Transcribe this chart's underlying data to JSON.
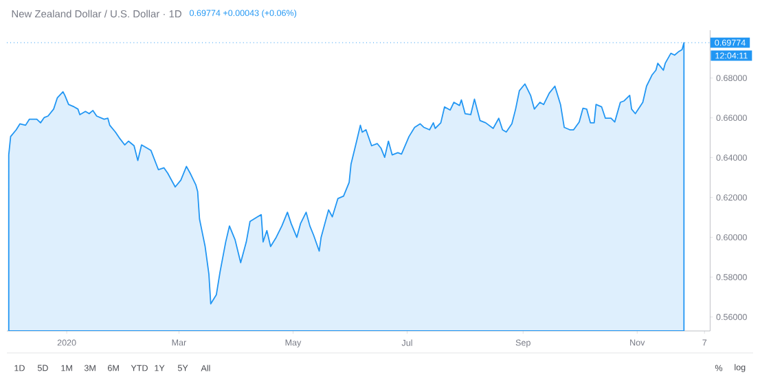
{
  "chart_data": {
    "type": "area",
    "title": "New Zealand Dollar / U.S. Dollar · 1D",
    "subtitle": "0.69774 +0.00043 (+0.06%)",
    "annotations": [
      "12:04:11",
      "1D",
      "5D",
      "1M",
      "3M",
      "6M",
      "YTD",
      "1Y",
      "5Y",
      "All",
      "%",
      "log"
    ],
    "x": [
      "2019-12-01",
      "2019-12-02",
      "2019-12-05",
      "2019-12-07",
      "2019-12-10",
      "2019-12-12",
      "2019-12-16",
      "2019-12-18",
      "2019-12-20",
      "2019-12-22",
      "2019-12-25",
      "2019-12-27",
      "2019-12-30",
      "2019-12-31",
      "2020-01-02",
      "2020-01-05",
      "2020-01-07",
      "2020-01-08",
      "2020-01-11",
      "2020-01-13",
      "2020-01-15",
      "2020-01-17",
      "2020-01-21",
      "2020-01-23",
      "2020-01-24",
      "2020-01-27",
      "2020-01-29",
      "2020-02-01",
      "2020-02-03",
      "2020-02-06",
      "2020-02-08",
      "2020-02-10",
      "2020-02-13",
      "2020-02-15",
      "2020-02-19",
      "2020-02-22",
      "2020-02-24",
      "2020-02-28",
      "2020-03-02",
      "2020-03-05",
      "2020-03-07",
      "2020-03-10",
      "2020-03-11",
      "2020-03-12",
      "2020-03-13",
      "2020-03-15",
      "2020-03-17",
      "2020-03-18",
      "2020-03-21",
      "2020-03-23",
      "2020-03-26",
      "2020-03-28",
      "2020-03-31",
      "2020-04-03",
      "2020-04-06",
      "2020-04-08",
      "2020-04-12",
      "2020-04-14",
      "2020-04-15",
      "2020-04-17",
      "2020-04-19",
      "2020-04-22",
      "2020-04-25",
      "2020-04-28",
      "2020-04-30",
      "2020-05-03",
      "2020-05-05",
      "2020-05-08",
      "2020-05-10",
      "2020-05-12",
      "2020-05-15",
      "2020-05-16",
      "2020-05-20",
      "2020-05-22",
      "2020-05-25",
      "2020-05-28",
      "2020-05-31",
      "2020-06-01",
      "2020-06-04",
      "2020-06-06",
      "2020-06-07",
      "2020-06-09",
      "2020-06-12",
      "2020-06-15",
      "2020-06-17",
      "2020-06-19",
      "2020-06-21",
      "2020-06-23",
      "2020-06-26",
      "2020-06-28",
      "2020-07-02",
      "2020-07-05",
      "2020-07-08",
      "2020-07-10",
      "2020-07-13",
      "2020-07-15",
      "2020-07-16",
      "2020-07-19",
      "2020-07-21",
      "2020-07-24",
      "2020-07-26",
      "2020-07-29",
      "2020-07-30",
      "2020-08-01",
      "2020-08-04",
      "2020-08-06",
      "2020-08-09",
      "2020-08-12",
      "2020-08-16",
      "2020-08-19",
      "2020-08-21",
      "2020-08-23",
      "2020-08-26",
      "2020-08-28",
      "2020-08-30",
      "2020-09-01",
      "2020-09-02",
      "2020-09-05",
      "2020-09-07",
      "2020-09-10",
      "2020-09-12",
      "2020-09-15",
      "2020-09-18",
      "2020-09-21",
      "2020-09-23",
      "2020-09-26",
      "2020-09-28",
      "2020-10-01",
      "2020-10-03",
      "2020-10-05",
      "2020-10-07",
      "2020-10-09",
      "2020-10-10",
      "2020-10-13",
      "2020-10-15",
      "2020-10-18",
      "2020-10-20",
      "2020-10-23",
      "2020-10-25",
      "2020-10-28",
      "2020-10-29",
      "2020-10-31",
      "2020-11-04",
      "2020-11-06",
      "2020-11-09",
      "2020-11-11",
      "2020-11-12",
      "2020-11-15",
      "2020-11-16",
      "2020-11-19",
      "2020-11-21",
      "2020-11-23",
      "2020-11-25",
      "2020-11-26"
    ],
    "values": [
      0.6414,
      0.6506,
      0.654,
      0.657,
      0.6563,
      0.6593,
      0.6593,
      0.6575,
      0.6602,
      0.6609,
      0.6644,
      0.6701,
      0.6731,
      0.6713,
      0.6667,
      0.6655,
      0.6644,
      0.6616,
      0.6632,
      0.6621,
      0.6637,
      0.6609,
      0.6593,
      0.6598,
      0.6563,
      0.6529,
      0.6501,
      0.6464,
      0.6483,
      0.646,
      0.6386,
      0.6464,
      0.6448,
      0.6437,
      0.634,
      0.6349,
      0.6322,
      0.6253,
      0.6287,
      0.6356,
      0.6322,
      0.6264,
      0.623,
      0.6092,
      0.6046,
      0.5954,
      0.5816,
      0.5666,
      0.5712,
      0.5828,
      0.5977,
      0.6057,
      0.5988,
      0.5873,
      0.5977,
      0.608,
      0.6103,
      0.6114,
      0.5977,
      0.6034,
      0.5954,
      0.6,
      0.6057,
      0.6126,
      0.6069,
      0.6,
      0.6069,
      0.6126,
      0.6057,
      0.6011,
      0.5931,
      0.6,
      0.6138,
      0.6103,
      0.6195,
      0.6207,
      0.6276,
      0.6368,
      0.6483,
      0.6563,
      0.6528,
      0.654,
      0.646,
      0.6471,
      0.6448,
      0.6402,
      0.6483,
      0.6414,
      0.6425,
      0.6418,
      0.6506,
      0.6552,
      0.657,
      0.6552,
      0.654,
      0.6575,
      0.6547,
      0.6575,
      0.6655,
      0.6639,
      0.6678,
      0.6662,
      0.669,
      0.6621,
      0.6616,
      0.6694,
      0.6586,
      0.6575,
      0.6547,
      0.6598,
      0.654,
      0.6529,
      0.657,
      0.6644,
      0.6736,
      0.6759,
      0.677,
      0.6713,
      0.6644,
      0.6678,
      0.6667,
      0.6724,
      0.6759,
      0.6667,
      0.6552,
      0.654,
      0.654,
      0.6579,
      0.6648,
      0.6644,
      0.6575,
      0.6575,
      0.6667,
      0.6655,
      0.6598,
      0.6598,
      0.6579,
      0.6678,
      0.6685,
      0.6713,
      0.6644,
      0.6621,
      0.6678,
      0.6759,
      0.6816,
      0.6839,
      0.6874,
      0.6839,
      0.6874,
      0.6924,
      0.6915,
      0.6931,
      0.6943,
      0.6977
    ],
    "color": "#2196f3",
    "xlim": [
      "2019-11-30",
      "2020-12-10"
    ],
    "xticks": [
      {
        "value": "2020-01-01",
        "label": "2020"
      },
      {
        "value": "2020-03-01",
        "label": "Mar"
      },
      {
        "value": "2020-05-01",
        "label": "May"
      },
      {
        "value": "2020-07-01",
        "label": "Jul"
      },
      {
        "value": "2020-09-01",
        "label": "Sep"
      },
      {
        "value": "2020-11-01",
        "label": "Nov"
      },
      {
        "value": "2020-12-07",
        "label": "7"
      }
    ],
    "ylim": [
      0.553,
      0.704
    ],
    "yticks": [
      {
        "value": 0.56,
        "label": "0.56000"
      },
      {
        "value": 0.58,
        "label": "0.58000"
      },
      {
        "value": 0.6,
        "label": "0.60000"
      },
      {
        "value": 0.62,
        "label": "0.62000"
      },
      {
        "value": 0.64,
        "label": "0.64000"
      },
      {
        "value": 0.66,
        "label": "0.66000"
      },
      {
        "value": 0.68,
        "label": "0.68000"
      }
    ],
    "ref_lines": [
      {
        "axis": "y",
        "value": 0.69774,
        "label": "0.69774",
        "color": "#2196f3",
        "line_style": "dotted"
      }
    ]
  }
}
